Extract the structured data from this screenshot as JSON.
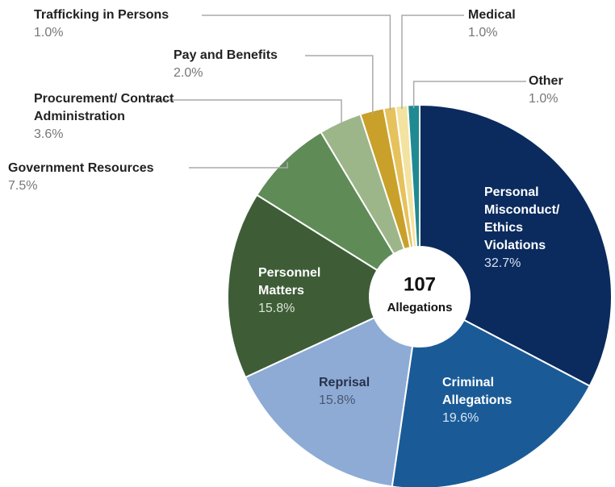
{
  "chart_data": {
    "type": "donut",
    "categories": [
      "Personal Misconduct/ Ethics Violations",
      "Criminal Allegations",
      "Reprisal",
      "Personnel Matters",
      "Government Resources",
      "Procurement/ Contract Administration",
      "Pay and Benefits",
      "Trafficking in Persons",
      "Medical",
      "Other"
    ],
    "values": [
      32.7,
      19.6,
      15.8,
      15.8,
      7.5,
      3.6,
      2.0,
      1.0,
      1.0,
      1.0
    ],
    "value_labels": [
      "32.7%",
      "19.6%",
      "15.8%",
      "15.8%",
      "7.5%",
      "3.6%",
      "2.0%",
      "1.0%",
      "1.0%",
      "1.0%"
    ],
    "colors": [
      "#0b2b5e",
      "#1a5b97",
      "#8eabd6",
      "#3e5d37",
      "#5f8b57",
      "#9db689",
      "#c9a12a",
      "#e6c25c",
      "#f3e3a0",
      "#1f8a92"
    ],
    "center_text": [
      "107",
      "Allegations"
    ]
  }
}
